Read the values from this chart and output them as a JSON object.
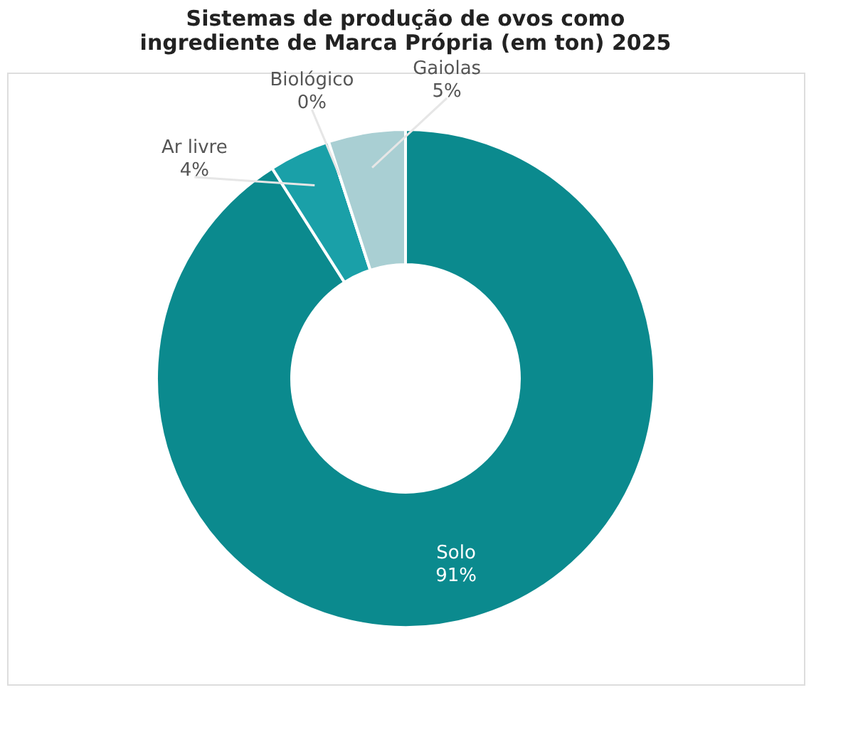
{
  "chart_data": {
    "type": "donut",
    "title": [
      "Sistemas de produção de ovos como",
      "ingrediente de Marca Própria (em ton) 2025"
    ],
    "categories": [
      "Solo",
      "Ar livre",
      "Biológico",
      "Gaiolas"
    ],
    "values": [
      91,
      4,
      0,
      5
    ],
    "value_labels": [
      "91%",
      "4%",
      "0%",
      "5%"
    ],
    "colors": [
      "#0b8a8e",
      "#1aa0a8",
      "#d0e8ea",
      "#a9cfd3"
    ],
    "legend": false
  }
}
